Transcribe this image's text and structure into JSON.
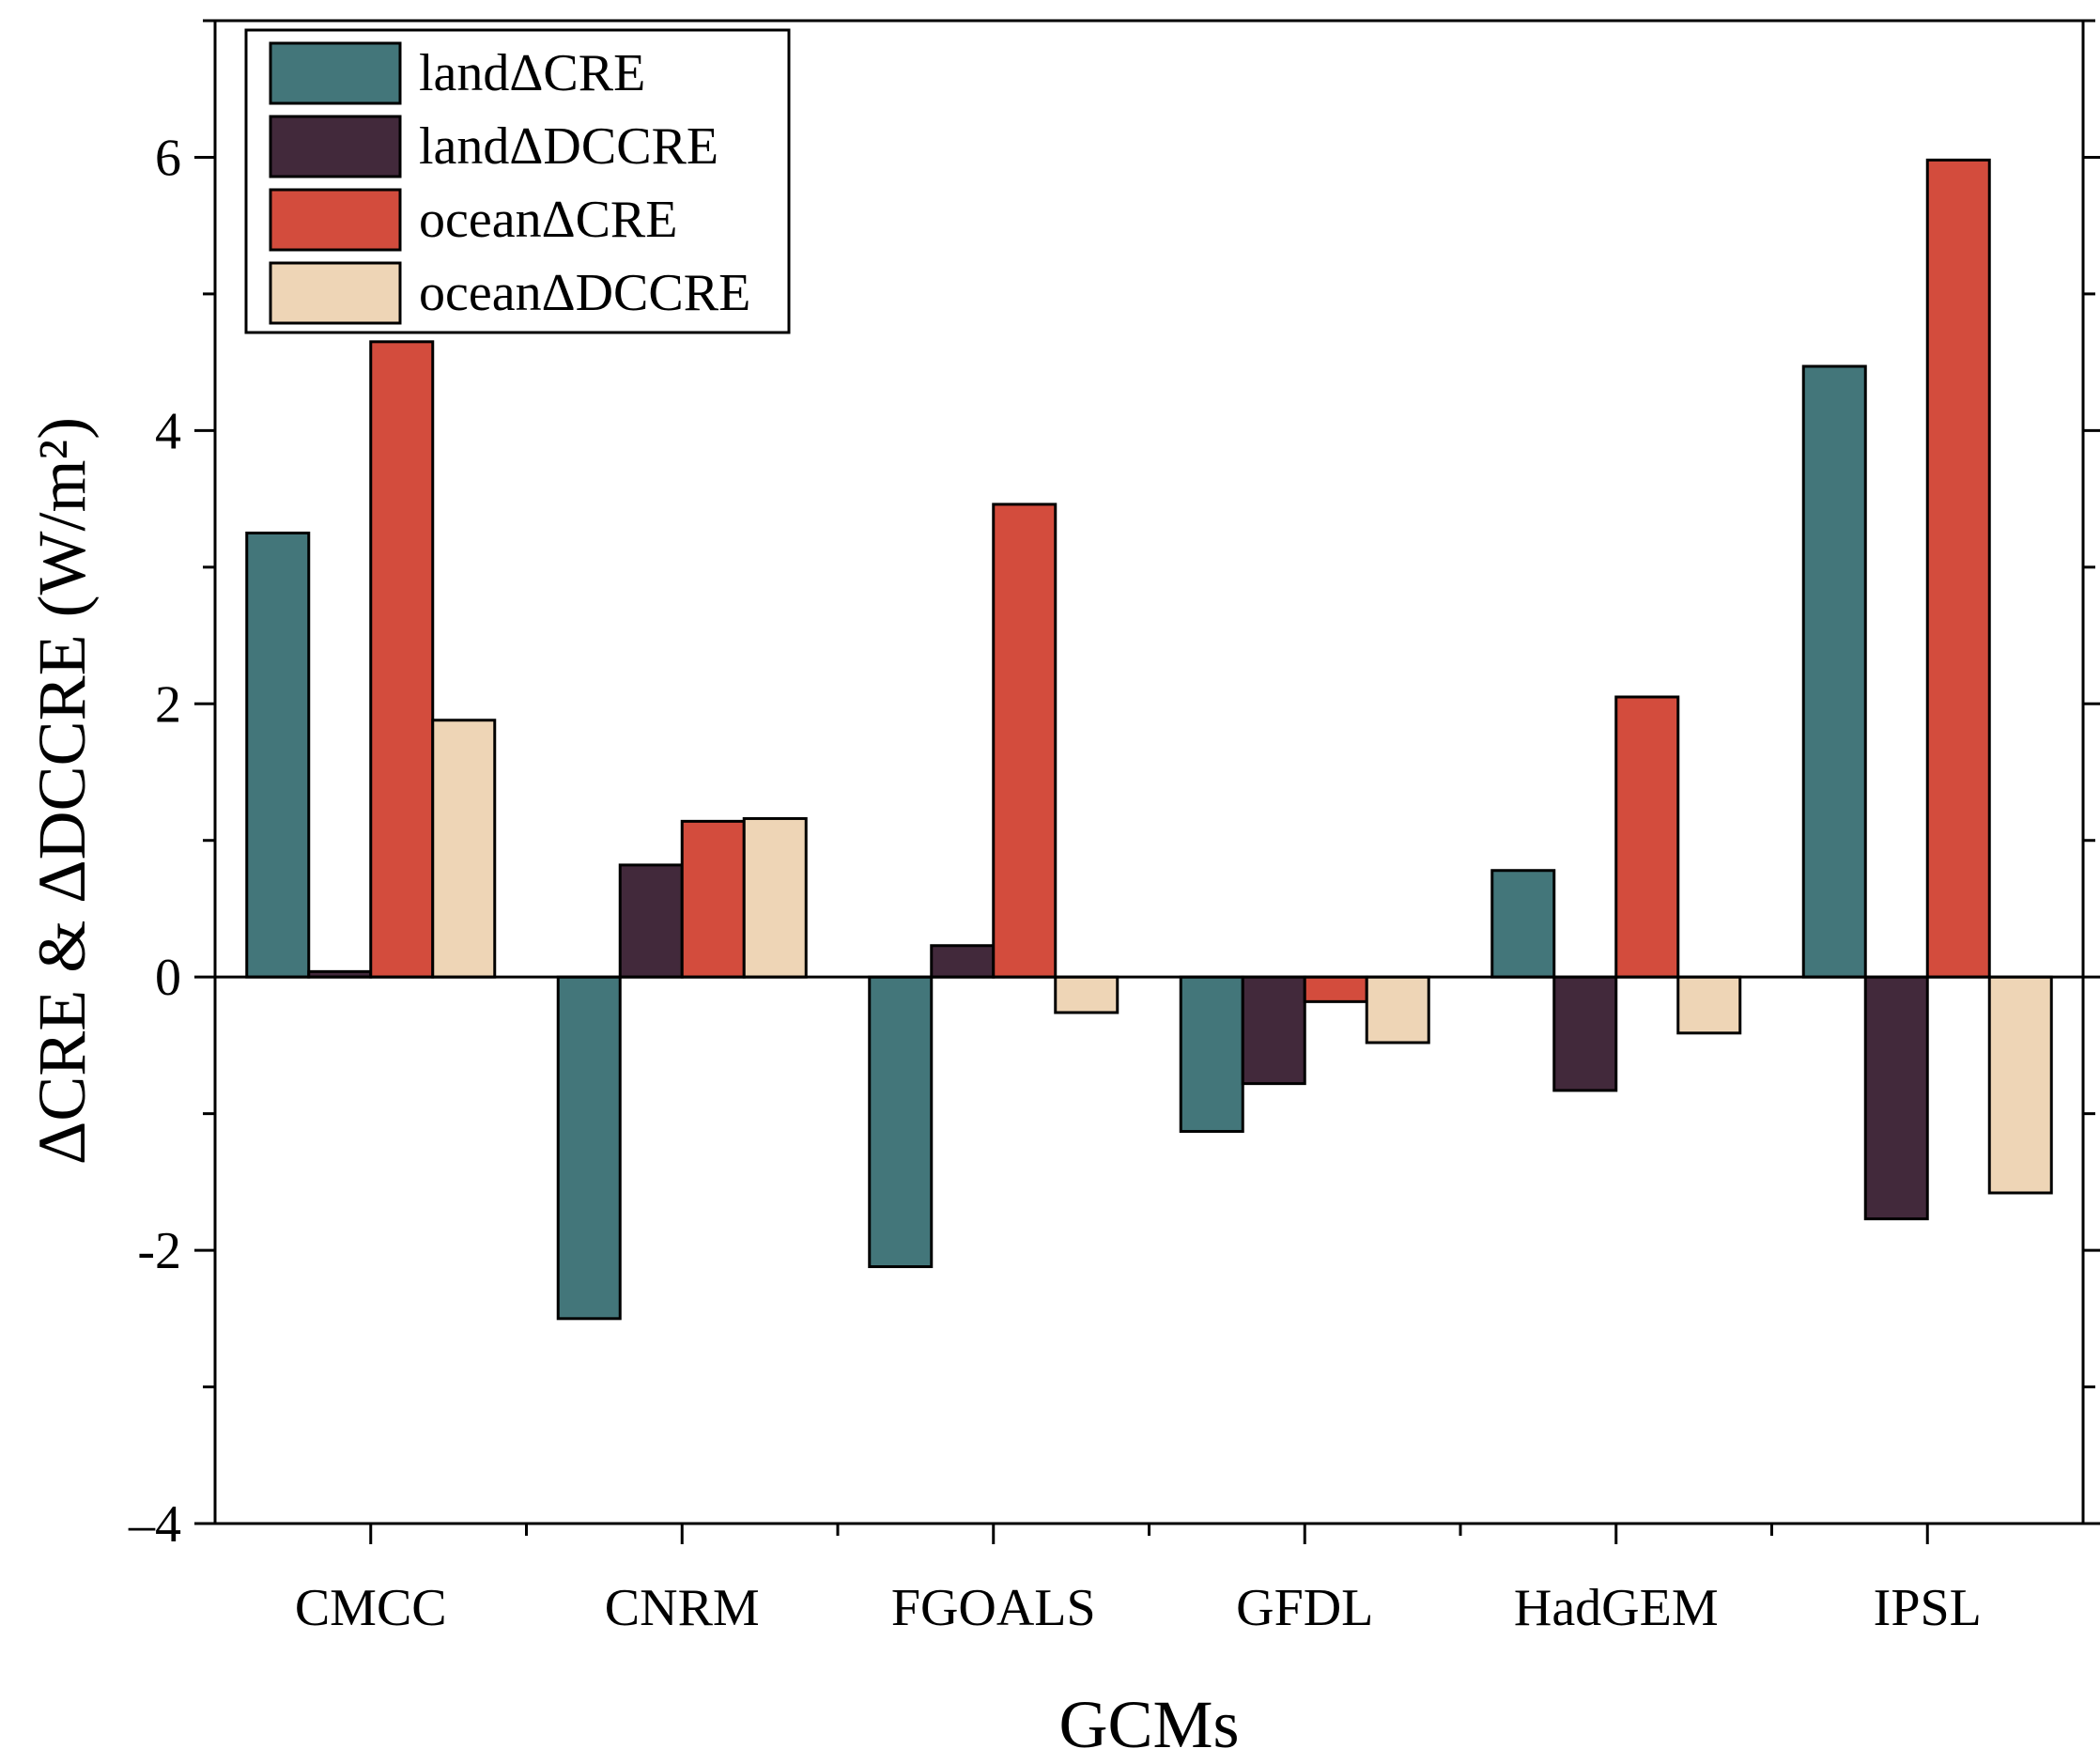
{
  "chart_data": {
    "type": "bar",
    "title": "",
    "xlabel": "GCMs",
    "ylabel": "ΔCRE & ΔDCCRE (W/m²)",
    "ylim": [
      -4,
      7
    ],
    "yticks": [
      -4,
      -2,
      0,
      2,
      4,
      6
    ],
    "ytick_labels": [
      "–4",
      "-2",
      "0",
      "2",
      "4",
      "6"
    ],
    "grid": false,
    "legend_position": "top-left",
    "categories": [
      "CMCC",
      "CNRM",
      "FGOALS",
      "GFDL",
      "HadGEM",
      "IPSL"
    ],
    "series": [
      {
        "name": "landΔCRE",
        "color": "#43767a",
        "values": [
          3.25,
          -2.5,
          -2.12,
          -1.13,
          0.78,
          4.47
        ]
      },
      {
        "name": "landΔDCCRE",
        "color": "#42293b",
        "values": [
          0.04,
          0.82,
          0.23,
          -0.78,
          -0.83,
          -1.77
        ]
      },
      {
        "name": "oceanΔCRE",
        "color": "#d34c3d",
        "values": [
          4.65,
          1.14,
          3.46,
          -0.18,
          2.05,
          5.98
        ]
      },
      {
        "name": "oceanΔDCCRE",
        "color": "#eed5b6",
        "values": [
          1.88,
          1.16,
          -0.26,
          -0.48,
          -0.41,
          -1.58
        ]
      }
    ]
  }
}
